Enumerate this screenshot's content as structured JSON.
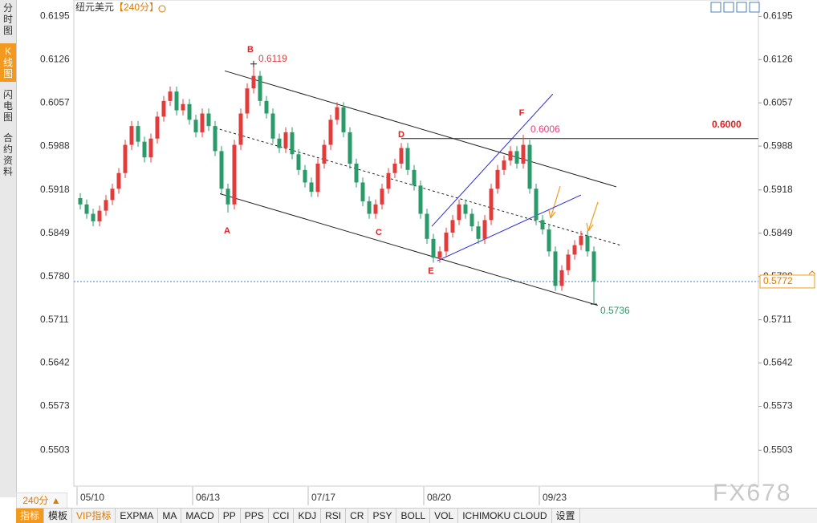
{
  "header": {
    "title": "纽元美元",
    "period": "【240分】"
  },
  "side_tabs": [
    "分时图",
    "K线图",
    "闪电图",
    "合约资料"
  ],
  "period_selector": "240分 ▲",
  "indicator_tabs": [
    "指标",
    "模板",
    "VIP指标",
    "EXPMA",
    "MA",
    "MACD",
    "PP",
    "PPS",
    "CCI",
    "KDJ",
    "RSI",
    "CR",
    "PSY",
    "BOLL",
    "VOL",
    "ICHIMOKU CLOUD",
    "设置"
  ],
  "watermark": "FX678",
  "chart_data": {
    "type": "candlestick",
    "categories": [
      "05/10",
      null,
      null,
      null,
      null,
      null,
      null,
      null,
      null,
      null,
      null,
      null,
      null,
      null,
      null,
      null,
      null,
      null,
      "06/13",
      null,
      null,
      null,
      null,
      null,
      null,
      null,
      null,
      null,
      null,
      null,
      null,
      null,
      null,
      null,
      null,
      null,
      "07/17",
      null,
      null,
      null,
      null,
      null,
      null,
      null,
      null,
      null,
      null,
      null,
      null,
      null,
      null,
      null,
      null,
      null,
      "08/20",
      null,
      null,
      null,
      null,
      null,
      null,
      null,
      null,
      null,
      null,
      null,
      null,
      null,
      null,
      null,
      null,
      null,
      "09/23",
      null,
      null,
      null,
      null,
      null,
      null,
      null,
      null
    ],
    "open": [
      0.5905,
      0.5895,
      0.588,
      0.5868,
      0.5885,
      0.5902,
      0.592,
      0.5945,
      0.599,
      0.602,
      0.5995,
      0.597,
      0.6,
      0.6035,
      0.606,
      0.6075,
      0.6045,
      0.6055,
      0.603,
      0.601,
      0.604,
      0.602,
      0.598,
      0.592,
      0.5895,
      0.599,
      0.604,
      0.608,
      0.61,
      0.606,
      0.604,
      0.6,
      0.5985,
      0.601,
      0.5975,
      0.595,
      0.593,
      0.5915,
      0.596,
      0.599,
      0.603,
      0.605,
      0.601,
      0.596,
      0.593,
      0.59,
      0.588,
      0.5895,
      0.592,
      0.5945,
      0.596,
      0.5985,
      0.595,
      0.5925,
      0.588,
      0.584,
      0.581,
      0.582,
      0.585,
      0.587,
      0.5895,
      0.588,
      0.586,
      0.584,
      0.587,
      0.592,
      0.595,
      0.5965,
      0.598,
      0.596,
      0.599,
      0.592,
      0.587,
      0.5855,
      0.582,
      0.5765,
      0.579,
      0.5815,
      0.583,
      0.5845,
      0.582
    ],
    "high": [
      0.5913,
      0.5903,
      0.5888,
      0.5893,
      0.591,
      0.5928,
      0.5953,
      0.5998,
      0.6028,
      0.6028,
      0.6003,
      0.6008,
      0.6043,
      0.6068,
      0.6083,
      0.6083,
      0.6063,
      0.6063,
      0.6038,
      0.6048,
      0.6048,
      0.6028,
      0.5988,
      0.5928,
      0.5998,
      0.6048,
      0.6088,
      0.6119,
      0.6108,
      0.6068,
      0.6048,
      0.6008,
      0.6018,
      0.6018,
      0.5983,
      0.5958,
      0.5938,
      0.5968,
      0.5998,
      0.6038,
      0.6058,
      0.6058,
      0.6018,
      0.5968,
      0.5938,
      0.5908,
      0.5903,
      0.5928,
      0.5953,
      0.5968,
      0.5993,
      0.5993,
      0.5958,
      0.5933,
      0.5888,
      0.5848,
      0.5828,
      0.5858,
      0.5878,
      0.5903,
      0.5903,
      0.5888,
      0.5868,
      0.5878,
      0.5928,
      0.5958,
      0.5973,
      0.5988,
      0.5988,
      0.6006,
      0.5998,
      0.5928,
      0.5878,
      0.5863,
      0.5828,
      0.5798,
      0.5823,
      0.5838,
      0.5853,
      0.5853,
      0.5828
    ],
    "low": [
      0.5887,
      0.5872,
      0.586,
      0.586,
      0.5877,
      0.5894,
      0.5912,
      0.5937,
      0.5982,
      0.5987,
      0.5962,
      0.5962,
      0.5992,
      0.6027,
      0.6052,
      0.6037,
      0.6037,
      0.6022,
      0.6002,
      0.6002,
      0.6012,
      0.5972,
      0.5912,
      0.5882,
      0.5887,
      0.5982,
      0.6032,
      0.6072,
      0.6052,
      0.6032,
      0.5992,
      0.5977,
      0.5977,
      0.5967,
      0.5942,
      0.5922,
      0.5907,
      0.5907,
      0.5952,
      0.5982,
      0.6022,
      0.6002,
      0.5952,
      0.5922,
      0.5892,
      0.5872,
      0.5872,
      0.5887,
      0.5912,
      0.5937,
      0.5952,
      0.5942,
      0.5917,
      0.5872,
      0.5832,
      0.5802,
      0.5802,
      0.5812,
      0.5842,
      0.5862,
      0.5872,
      0.5852,
      0.5832,
      0.5832,
      0.5862,
      0.5912,
      0.5942,
      0.5957,
      0.5952,
      0.5952,
      0.5912,
      0.5862,
      0.5847,
      0.5812,
      0.5757,
      0.5757,
      0.5782,
      0.5807,
      0.5822,
      0.5812,
      0.5736
    ],
    "close": [
      0.5895,
      0.588,
      0.5868,
      0.5885,
      0.5902,
      0.592,
      0.5945,
      0.599,
      0.602,
      0.5995,
      0.597,
      0.6,
      0.6035,
      0.606,
      0.6075,
      0.6045,
      0.6055,
      0.603,
      0.601,
      0.604,
      0.602,
      0.598,
      0.592,
      0.5895,
      0.599,
      0.604,
      0.608,
      0.61,
      0.606,
      0.604,
      0.6,
      0.5985,
      0.601,
      0.5975,
      0.595,
      0.593,
      0.5915,
      0.596,
      0.599,
      0.603,
      0.605,
      0.601,
      0.596,
      0.593,
      0.59,
      0.588,
      0.5895,
      0.592,
      0.5945,
      0.596,
      0.5985,
      0.595,
      0.5925,
      0.588,
      0.584,
      0.581,
      0.582,
      0.585,
      0.587,
      0.5895,
      0.588,
      0.586,
      0.584,
      0.587,
      0.592,
      0.595,
      0.5965,
      0.598,
      0.596,
      0.599,
      0.592,
      0.587,
      0.5855,
      0.582,
      0.5765,
      0.579,
      0.5815,
      0.583,
      0.5845,
      0.582,
      0.5772
    ],
    "up_color": "#e03c3c",
    "down_color": "#2a9a6a",
    "ylim": [
      0.5447,
      0.6221
    ],
    "yticks": [
      0.6195,
      0.6126,
      0.6057,
      0.5988,
      0.5918,
      0.5849,
      {
        "value": 0.578,
        "label": "0.5780"
      },
      0.5711,
      0.5642,
      0.5573,
      0.5503
    ],
    "grid": false,
    "annotations": [
      "A",
      "B",
      "C",
      "D",
      "E",
      "F"
    ],
    "price_labels": [
      0.6119,
      0.6006,
      0.5736,
      {
        "value": 0.6,
        "label": "0.6000"
      }
    ],
    "last_price": 0.5772,
    "trendlines": [
      {
        "x": [
          22.5,
          83.5
        ],
        "y": [
          0.6108,
          0.5923
        ],
        "color": "#222222",
        "dash": false
      },
      {
        "x": [
          21.75,
          80.6
        ],
        "y": [
          0.5912,
          0.5734
        ],
        "color": "#222222",
        "dash": false
      },
      {
        "x": [
          21,
          84.1
        ],
        "y": [
          0.6017,
          0.583
        ],
        "color": "#222222",
        "dash": true
      },
      {
        "x": [
          50,
          105.6
        ],
        "y": [
          0.6,
          0.6
        ],
        "color": "#222222",
        "dash": false
      },
      {
        "x": [
          54.75,
          73.6
        ],
        "y": [
          0.586,
          0.6071
        ],
        "color": "#2b2bd6",
        "dash": false
      },
      {
        "x": [
          55.6,
          78
        ],
        "y": [
          0.5805,
          0.591
        ],
        "color": "#2b2bd6",
        "dash": false
      }
    ]
  }
}
